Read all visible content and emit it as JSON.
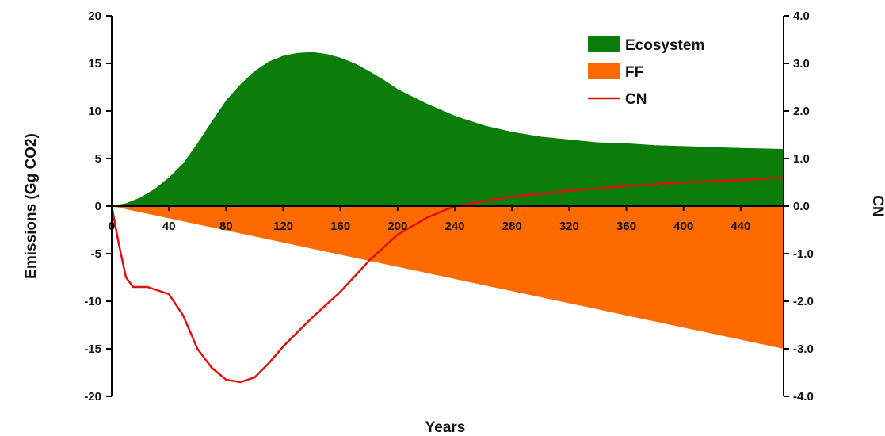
{
  "chart_data": {
    "type": "area",
    "xlabel": "Years",
    "ylabel": "Emissions (Gg CO2)",
    "y2label": "CN",
    "xlim": [
      0,
      470
    ],
    "ylim": [
      -20,
      20
    ],
    "y2lim": [
      -4.0,
      4.0
    ],
    "x_ticks": [
      "0",
      "40",
      "80",
      "120",
      "160",
      "200",
      "240",
      "280",
      "320",
      "360",
      "400",
      "440"
    ],
    "y_ticks": [
      "20",
      "15",
      "10",
      "5",
      "0",
      "-5",
      "-10",
      "-15",
      "-20"
    ],
    "y2_ticks": [
      "4.0",
      "3.0",
      "2.0",
      "1.0",
      "0.0",
      "-1.0",
      "-2.0",
      "-3.0",
      "-4.0"
    ],
    "legend_position": "top-right",
    "grid": false,
    "series": [
      {
        "name": "Ecosystem",
        "type": "area",
        "axis": "left",
        "color": "#0a7d0a",
        "x": [
          0,
          10,
          20,
          30,
          40,
          50,
          60,
          70,
          80,
          90,
          100,
          110,
          120,
          130,
          140,
          150,
          160,
          170,
          180,
          190,
          200,
          220,
          240,
          260,
          280,
          300,
          320,
          340,
          360,
          380,
          400,
          420,
          440,
          470
        ],
        "y": [
          0,
          0.3,
          0.9,
          1.8,
          3.0,
          4.5,
          6.6,
          8.9,
          11.1,
          12.8,
          14.2,
          15.2,
          15.8,
          16.1,
          16.2,
          16.0,
          15.6,
          15.0,
          14.2,
          13.3,
          12.3,
          10.8,
          9.5,
          8.5,
          7.8,
          7.3,
          7.0,
          6.7,
          6.6,
          6.4,
          6.3,
          6.2,
          6.1,
          6.0
        ]
      },
      {
        "name": "FF",
        "type": "area",
        "axis": "left",
        "color": "#ff6a00",
        "x": [
          0,
          470
        ],
        "y": [
          0,
          -15
        ]
      },
      {
        "name": "CN",
        "type": "line",
        "axis": "right",
        "color": "#e01010",
        "x": [
          0,
          5,
          10,
          15,
          20,
          25,
          30,
          40,
          50,
          55,
          60,
          70,
          80,
          90,
          100,
          110,
          120,
          140,
          160,
          180,
          200,
          220,
          240,
          260,
          280,
          320,
          360,
          400,
          440,
          470
        ],
        "y": [
          0,
          -0.8,
          -1.5,
          -1.7,
          -1.7,
          -1.7,
          -1.75,
          -1.85,
          -2.3,
          -2.65,
          -3.0,
          -3.4,
          -3.65,
          -3.7,
          -3.6,
          -3.3,
          -2.95,
          -2.35,
          -1.8,
          -1.15,
          -0.6,
          -0.25,
          0.0,
          0.1,
          0.2,
          0.32,
          0.42,
          0.5,
          0.55,
          0.6
        ]
      }
    ]
  }
}
